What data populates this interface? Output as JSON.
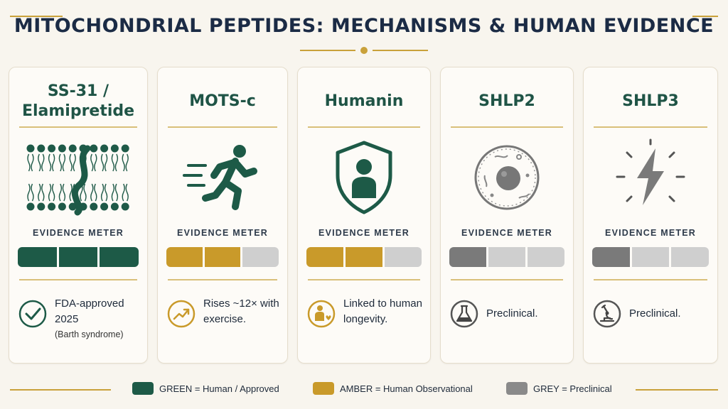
{
  "title": "MITOCHONDRIAL PEPTIDES: MECHANISMS & HUMAN EVIDENCE",
  "meter_label": "EVIDENCE METER",
  "colors": {
    "green": "#1d5a47",
    "amber": "#c99a2a",
    "grey_filled": "#7a7a7a",
    "grey_empty": "#cfcfcf",
    "gold": "#c9a13a"
  },
  "cards": [
    {
      "title": "SS-31 / Elamipretide",
      "icon": "membrane-peptide-icon",
      "meter": {
        "level": "green",
        "filled": 3,
        "total": 3
      },
      "badge": "checkmark-icon",
      "note": "FDA-approved 2025",
      "note_sub": "(Barth syndrome)"
    },
    {
      "title": "MOTS-c",
      "icon": "running-person-icon",
      "meter": {
        "level": "amber",
        "filled": 2,
        "total": 3
      },
      "badge": "trend-up-icon",
      "note": "Rises ~12× with exercise.",
      "note_sub": ""
    },
    {
      "title": "Humanin",
      "icon": "shield-person-icon",
      "meter": {
        "level": "amber",
        "filled": 2,
        "total": 3
      },
      "badge": "person-heart-icon",
      "note": "Linked to human longevity.",
      "note_sub": ""
    },
    {
      "title": "SHLP2",
      "icon": "cell-icon",
      "meter": {
        "level": "grey",
        "filled": 1,
        "total": 3
      },
      "badge": "flask-icon",
      "note": "Preclinical.",
      "note_sub": ""
    },
    {
      "title": "SHLP3",
      "icon": "lightning-icon",
      "meter": {
        "level": "grey",
        "filled": 1,
        "total": 3
      },
      "badge": "microscope-icon",
      "note": "Preclinical.",
      "note_sub": ""
    }
  ],
  "legend": [
    {
      "label": "GREEN = Human / Approved",
      "color": "#1d5a47"
    },
    {
      "label": "AMBER = Human Observational",
      "color": "#c99a2a"
    },
    {
      "label": "GREY = Preclinical",
      "color": "#8a8a8a"
    }
  ]
}
